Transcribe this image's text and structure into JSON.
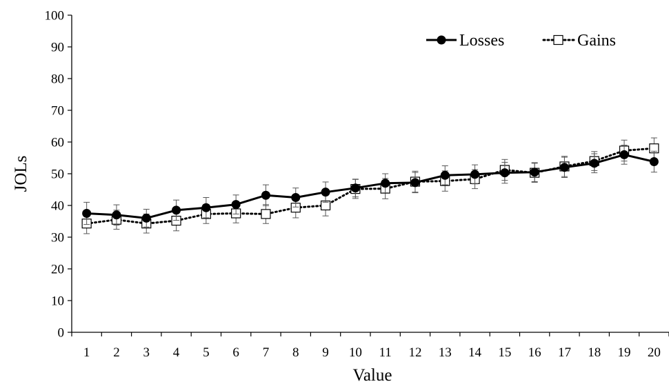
{
  "chart_data": {
    "type": "line",
    "title": "",
    "xlabel": "Value",
    "ylabel": "JOLs",
    "categories": [
      "1",
      "2",
      "3",
      "4",
      "5",
      "6",
      "7",
      "8",
      "9",
      "10",
      "11",
      "12",
      "13",
      "14",
      "15",
      "16",
      "17",
      "18",
      "19",
      "20"
    ],
    "ylim": [
      0,
      100
    ],
    "yticks": [
      "0",
      "10",
      "20",
      "30",
      "40",
      "50",
      "60",
      "70",
      "80",
      "90",
      "100"
    ],
    "grid": false,
    "legend_position": "top-right",
    "series": [
      {
        "name": "Losses",
        "marker": "filled-circle",
        "line_style": "solid",
        "color": "#000000",
        "values": [
          37.5,
          37.0,
          36.0,
          38.5,
          39.3,
          40.3,
          43.2,
          42.5,
          44.2,
          45.5,
          47.0,
          47.2,
          49.5,
          49.8,
          50.3,
          50.5,
          52.0,
          53.3,
          56.0,
          53.8
        ],
        "errors": [
          3.5,
          3.2,
          2.8,
          3.2,
          3.2,
          3.0,
          3.3,
          3.0,
          3.2,
          2.8,
          3.0,
          3.2,
          3.0,
          3.0,
          3.3,
          3.0,
          3.2,
          3.0,
          3.0,
          3.3
        ]
      },
      {
        "name": "Gains",
        "marker": "open-square",
        "line_style": "dotted",
        "color": "#000000",
        "values": [
          34.3,
          35.5,
          34.3,
          35.2,
          37.3,
          37.5,
          37.3,
          39.3,
          40.0,
          45.2,
          45.3,
          47.5,
          47.7,
          48.3,
          51.2,
          50.3,
          52.3,
          54.0,
          57.3,
          58.0
        ],
        "errors": [
          3.2,
          3.0,
          3.0,
          3.2,
          3.0,
          3.0,
          3.0,
          3.2,
          3.3,
          3.0,
          3.2,
          3.3,
          3.2,
          3.0,
          3.3,
          3.0,
          3.2,
          3.0,
          3.3,
          3.3
        ]
      }
    ]
  }
}
